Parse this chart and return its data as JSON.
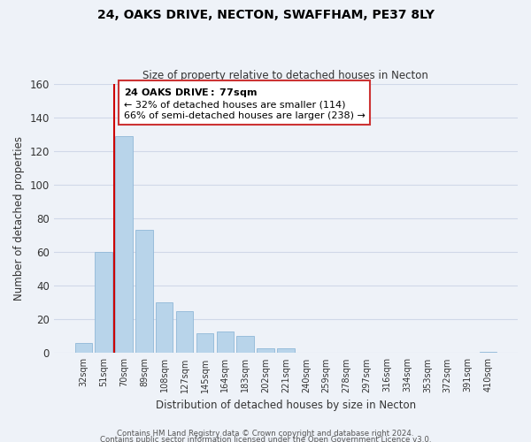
{
  "title": "24, OAKS DRIVE, NECTON, SWAFFHAM, PE37 8LY",
  "subtitle": "Size of property relative to detached houses in Necton",
  "xlabel": "Distribution of detached houses by size in Necton",
  "ylabel": "Number of detached properties",
  "bar_color": "#b8d4ea",
  "bar_edge_color": "#90b8d8",
  "background_color": "#eef2f8",
  "grid_color": "#d0d8e8",
  "categories": [
    "32sqm",
    "51sqm",
    "70sqm",
    "89sqm",
    "108sqm",
    "127sqm",
    "145sqm",
    "164sqm",
    "183sqm",
    "202sqm",
    "221sqm",
    "240sqm",
    "259sqm",
    "278sqm",
    "297sqm",
    "316sqm",
    "334sqm",
    "353sqm",
    "372sqm",
    "391sqm",
    "410sqm"
  ],
  "values": [
    6,
    60,
    129,
    73,
    30,
    25,
    12,
    13,
    10,
    3,
    3,
    0,
    0,
    0,
    0,
    0,
    0,
    0,
    0,
    0,
    1
  ],
  "marker_bin_index": 1.5,
  "marker_color": "#cc0000",
  "annotation_title": "24 OAKS DRIVE: 77sqm",
  "annotation_line1": "← 32% of detached houses are smaller (114)",
  "annotation_line2": "66% of semi-detached houses are larger (238) →",
  "annotation_box_color": "white",
  "annotation_box_edge": "#cc3333",
  "ylim": [
    0,
    160
  ],
  "yticks": [
    0,
    20,
    40,
    60,
    80,
    100,
    120,
    140,
    160
  ],
  "footer1": "Contains HM Land Registry data © Crown copyright and database right 2024.",
  "footer2": "Contains public sector information licensed under the Open Government Licence v3.0."
}
